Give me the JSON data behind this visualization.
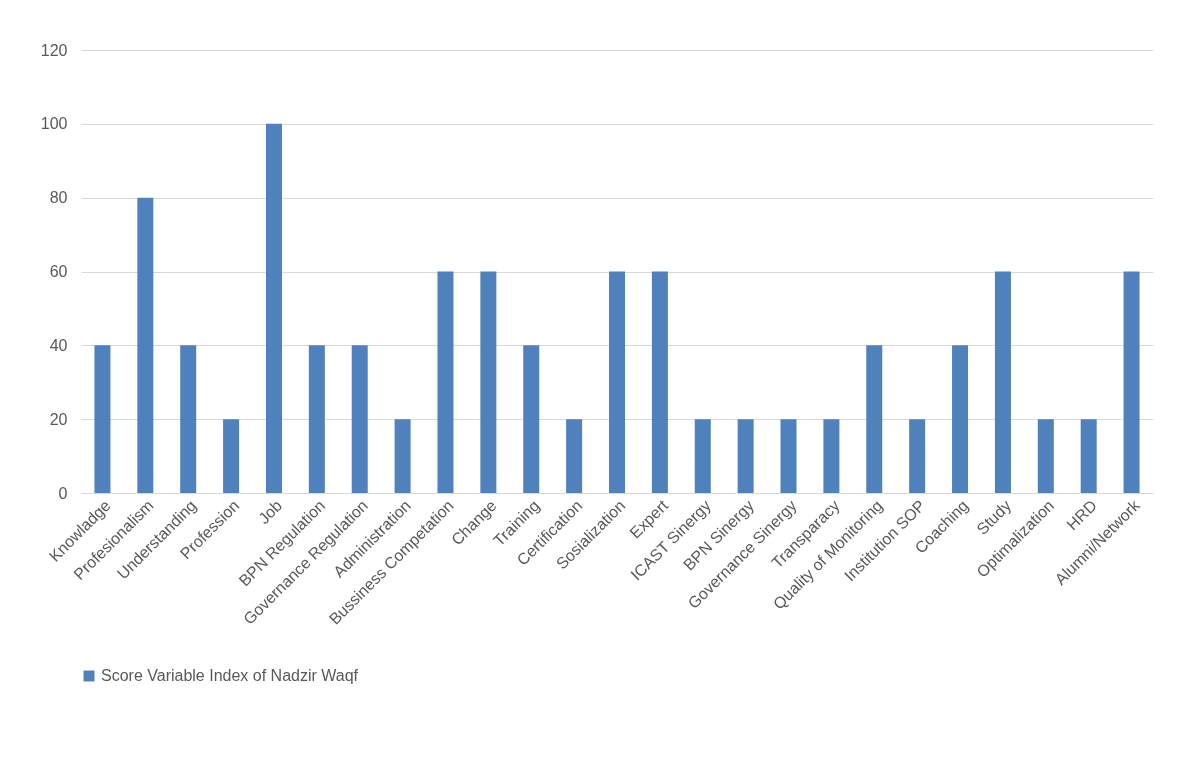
{
  "chart_data": {
    "type": "bar",
    "categories": [
      "Knowladge",
      "Profesionalism",
      "Understanding",
      "Profession",
      "Job",
      "BPN Regulation",
      "Governance Regulation",
      "Administration",
      "Bussiness Competation",
      "Change",
      "Training",
      "Certification",
      "Sosialization",
      "Expert",
      "ICAST Sinergy",
      "BPN Sinergy",
      "Governance Sinergy",
      "Transparacy",
      "Quality of Monitoring",
      "Institution SOP",
      "Coaching",
      "Study",
      "Optimalization",
      "HRD",
      "Alumni/Network"
    ],
    "series": [
      {
        "name": "Score Variable Index of Nadzir Waqf",
        "color": "#4f81bd",
        "values": [
          40,
          80,
          40,
          20,
          100,
          40,
          40,
          20,
          60,
          60,
          40,
          20,
          60,
          60,
          20,
          20,
          20,
          20,
          40,
          20,
          40,
          60,
          20,
          20,
          60
        ]
      }
    ],
    "ylim": [
      0,
      120
    ],
    "yticks": [
      0,
      20,
      40,
      60,
      80,
      100,
      120
    ],
    "grid": "y",
    "legend": "bottom"
  }
}
